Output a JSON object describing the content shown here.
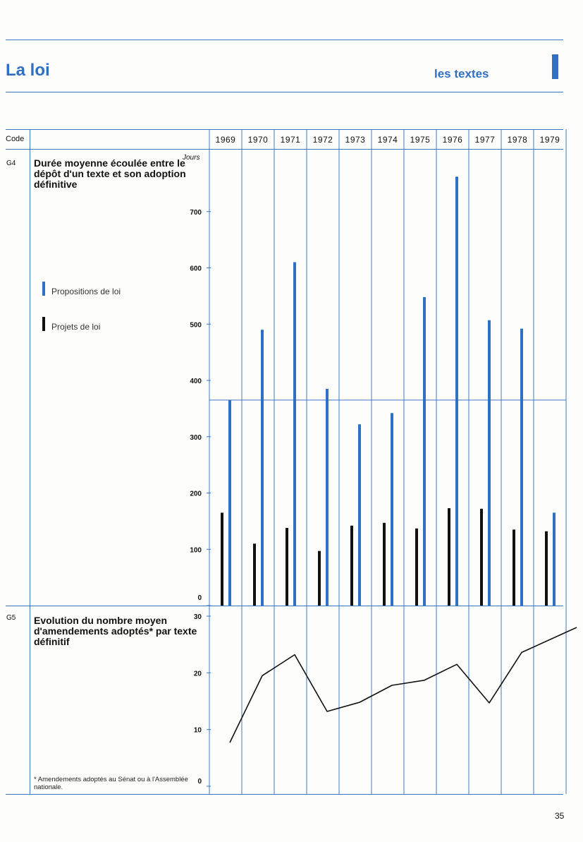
{
  "header": {
    "page_title": "La loi",
    "section_title": "les textes"
  },
  "table": {
    "code_label": "Code",
    "years": [
      "1969",
      "1970",
      "1971",
      "1972",
      "1973",
      "1974",
      "1975",
      "1976",
      "1977",
      "1978",
      "1979"
    ]
  },
  "colors": {
    "accent": "#2f6fc4",
    "projets": "#111111"
  },
  "chart_data": [
    {
      "code": "G4",
      "type": "bar",
      "title": "Durée moyenne écoulée entre le dépôt d'un texte et son adoption définitive",
      "ylabel": "Jours",
      "ylim": [
        0,
        800
      ],
      "yticks": [
        0,
        100,
        200,
        300,
        400,
        500,
        600,
        700
      ],
      "categories": [
        "1969",
        "1970",
        "1971",
        "1972",
        "1973",
        "1974",
        "1975",
        "1976",
        "1977",
        "1978",
        "1979"
      ],
      "reference_line": 365,
      "legend_placement": "left",
      "series": [
        {
          "name": "Projets de loi",
          "color": "#111111",
          "values": [
            165,
            110,
            138,
            97,
            142,
            147,
            137,
            173,
            172,
            135,
            132
          ]
        },
        {
          "name": "Propositions de loi",
          "color": "#2f6fc4",
          "values": [
            365,
            490,
            610,
            385,
            322,
            342,
            548,
            762,
            507,
            492,
            165
          ]
        }
      ]
    },
    {
      "code": "G5",
      "type": "line",
      "title": "Evolution du nombre moyen d'amendements adoptés* par texte définitif",
      "ylim": [
        0,
        30
      ],
      "yticks": [
        0,
        10,
        20,
        30
      ],
      "categories": [
        "1969",
        "1970",
        "1971",
        "1972",
        "1973",
        "1974",
        "1975",
        "1976",
        "1977",
        "1978",
        "1979"
      ],
      "series": [
        {
          "values": [
            7.7,
            19.5,
            23.2,
            13.2,
            14.8,
            17.8,
            18.7,
            21.5,
            14.7,
            23.6,
            26.2
          ]
        }
      ],
      "footnote": "* Amendements adoptés au Sénat ou à l'Assemblée nationale."
    }
  ],
  "page_number": "35"
}
